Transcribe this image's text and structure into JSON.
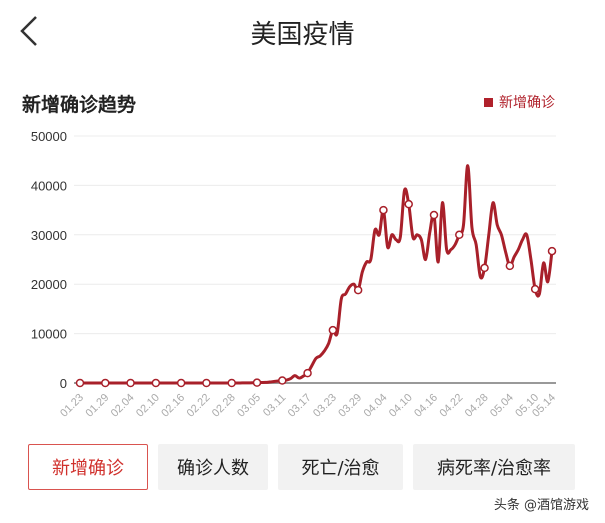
{
  "header": {
    "title": "美国疫情",
    "back_icon": "chevron-left-icon"
  },
  "chart_data": {
    "type": "line",
    "title": "新增确诊趋势",
    "legend": {
      "entries": [
        "新增确诊"
      ],
      "placement": "top-right"
    },
    "color": "#a8202a",
    "ylim": [
      0,
      50000
    ],
    "yticks": [
      0,
      10000,
      20000,
      30000,
      40000,
      50000
    ],
    "grid": true,
    "xtick_labels": [
      "01.23",
      "01.29",
      "02.04",
      "02.10",
      "02.16",
      "02.22",
      "02.28",
      "03.05",
      "03.11",
      "03.17",
      "03.23",
      "03.29",
      "04.04",
      "04.10",
      "04.16",
      "04.22",
      "04.28",
      "05.04",
      "05.10",
      "05.14"
    ],
    "x_start": "01.23",
    "x_end": "05.14",
    "series": [
      {
        "name": "新增确诊",
        "values": [
          0,
          0,
          0,
          0,
          0,
          0,
          0,
          0,
          0,
          0,
          0,
          0,
          0,
          0,
          0,
          0,
          0,
          0,
          0,
          0,
          0,
          0,
          0,
          0,
          0,
          0,
          0,
          0,
          0,
          0,
          0,
          0,
          0,
          0,
          0,
          0,
          0,
          0,
          10,
          20,
          30,
          40,
          70,
          100,
          120,
          200,
          300,
          400,
          500,
          600,
          900,
          1500,
          1000,
          1400,
          2000,
          3500,
          5000,
          5500,
          6500,
          8000,
          10700,
          10000,
          17000,
          18000,
          19500,
          20000,
          18800,
          22500,
          24500,
          25000,
          31000,
          30000,
          35000,
          27500,
          30000,
          29000,
          29500,
          39000,
          36200,
          29500,
          30000,
          29000,
          25000,
          30500,
          34000,
          24500,
          36500,
          27000,
          27000,
          28000,
          30000,
          32000,
          44000,
          31500,
          28000,
          21500,
          23300,
          30000,
          36500,
          32000,
          30000,
          26500,
          23700,
          25500,
          27000,
          29000,
          30000,
          25000,
          19000,
          18000,
          24300,
          20500,
          26700
        ]
      }
    ]
  },
  "tabs": [
    {
      "label": "新增确诊",
      "selected": true
    },
    {
      "label": "确诊人数"
    },
    {
      "label": "死亡/治愈"
    },
    {
      "label": "病死率/治愈率"
    }
  ],
  "watermark": "头条 @酒馆游戏"
}
